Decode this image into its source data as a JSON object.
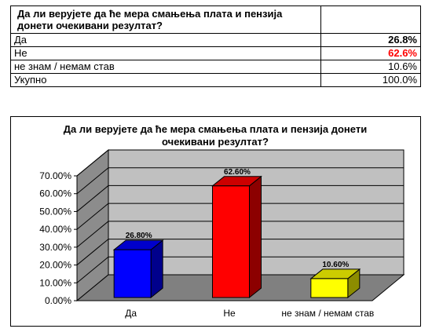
{
  "table": {
    "question": "Да ли верујете да ће мера смањења плата и пензија донети очекивани резултат?",
    "rows": [
      {
        "label": "Да",
        "value": "26.8%"
      },
      {
        "label": "Не",
        "value": "62.6%"
      },
      {
        "label": "не знам / немам став",
        "value": "10.6%"
      },
      {
        "label": "Укупно",
        "value": "100.0%"
      }
    ]
  },
  "chart_data": {
    "type": "bar",
    "title": "Да ли верујете да ће мера смањења плата и пензија донети очекивани резултат?",
    "categories": [
      "Да",
      "Не",
      "не знам / немам став"
    ],
    "values": [
      26.8,
      62.6,
      10.6
    ],
    "data_labels": [
      "26.80%",
      "62.60%",
      "10.60%"
    ],
    "colors": [
      "#0000ff",
      "#ff0000",
      "#ffff00"
    ],
    "ylim": [
      0,
      70
    ],
    "yticks": [
      "0.00%",
      "10.00%",
      "20.00%",
      "30.00%",
      "40.00%",
      "50.00%",
      "60.00%",
      "70.00%"
    ],
    "grid": true,
    "three_d": true
  }
}
